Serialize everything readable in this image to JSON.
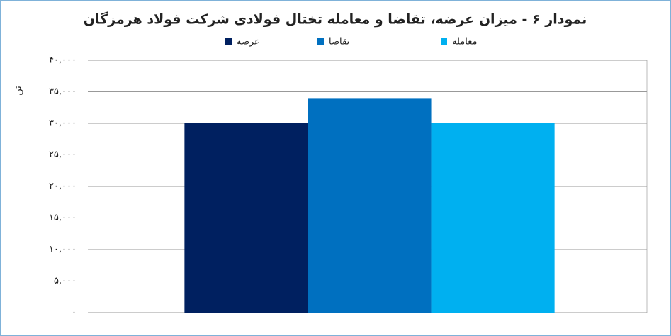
{
  "chart_data": {
    "type": "bar",
    "title": "نمودار ۶ - میزان عرضه، تقاضا و معامله تختال فولادی شرکت فولاد هرمزگان",
    "y_label": "تن",
    "categories": [
      null
    ],
    "series": [
      {
        "name": "عرضه",
        "color": "#002060",
        "values": [
          30000
        ]
      },
      {
        "name": "تقاضا",
        "color": "#0070c0",
        "values": [
          34000
        ]
      },
      {
        "name": "معامله",
        "color": "#00b0f0",
        "values": [
          30000
        ]
      }
    ],
    "ylim": [
      0,
      40000
    ],
    "yticks": [
      {
        "value": 0,
        "label": "۰"
      },
      {
        "value": 5000,
        "label": "۵,۰۰۰"
      },
      {
        "value": 10000,
        "label": "۱۰,۰۰۰"
      },
      {
        "value": 15000,
        "label": "۱۵,۰۰۰"
      },
      {
        "value": 20000,
        "label": "۲۰,۰۰۰"
      },
      {
        "value": 25000,
        "label": "۲۵,۰۰۰"
      },
      {
        "value": 30000,
        "label": "۳۰,۰۰۰"
      },
      {
        "value": 35000,
        "label": "۳۵,۰۰۰"
      },
      {
        "value": 40000,
        "label": "۴۰,۰۰۰"
      }
    ],
    "grid": true
  }
}
